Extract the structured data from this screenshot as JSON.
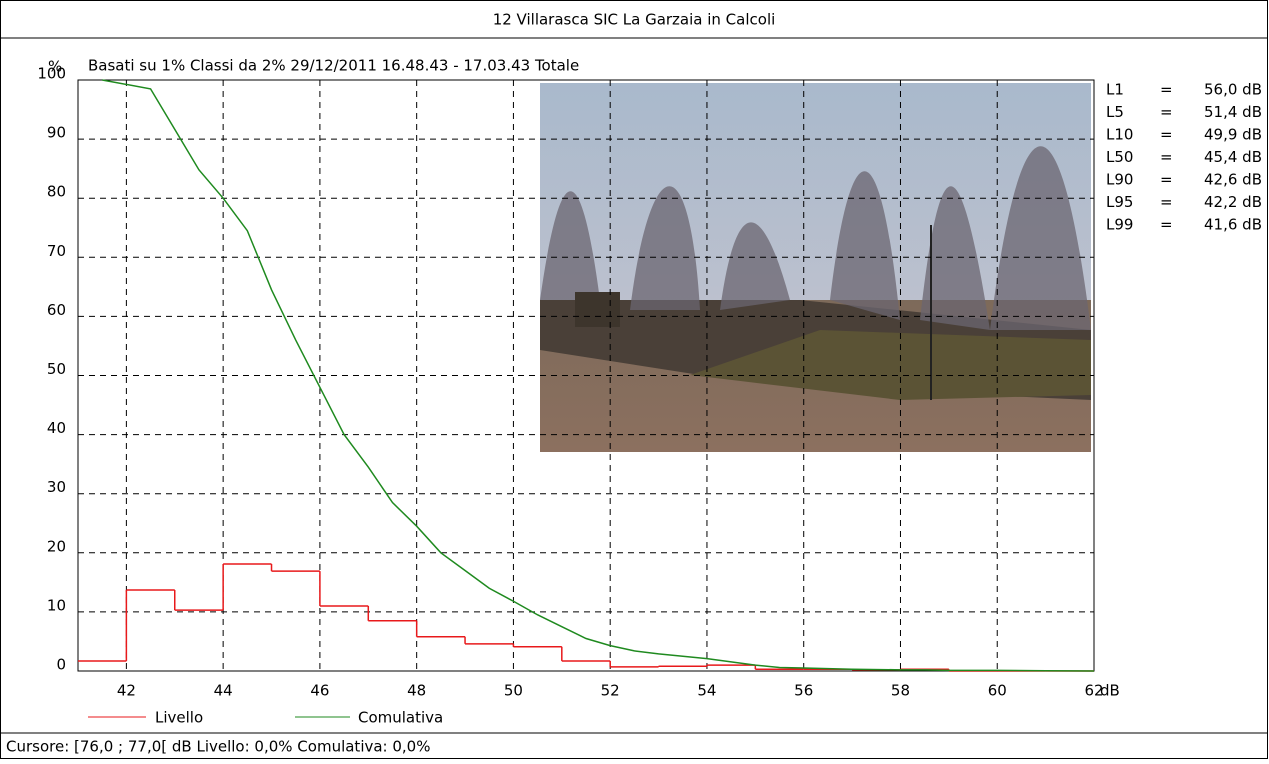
{
  "chart_data": {
    "type": "step-distribution",
    "title": "12 Villarasca SIC La Garzaia in Calcoli",
    "subtitle": "Basati su 1%   Classi da 2%  29/12/2011 16.48.43 - 17.03.43  Totale",
    "y_label": "%",
    "x_label": "dB",
    "xlim": [
      41,
      62
    ],
    "xticks": [
      42,
      44,
      46,
      48,
      50,
      52,
      54,
      56,
      58,
      60,
      62
    ],
    "ylim": [
      0,
      100
    ],
    "yticks": [
      0,
      10,
      20,
      30,
      40,
      50,
      60,
      70,
      80,
      90,
      100
    ],
    "grid": true,
    "series": [
      {
        "name": "Livello",
        "color": "#e8191b",
        "bins": [
          41,
          42,
          43,
          44,
          45,
          46,
          47,
          48,
          49,
          50,
          51,
          52,
          53,
          54,
          55,
          56,
          57,
          58,
          59,
          60,
          61,
          62
        ],
        "values": [
          1.7,
          13.7,
          10.3,
          18.1,
          16.9,
          11.0,
          8.5,
          5.8,
          4.6,
          4.1,
          1.7,
          0.7,
          0.8,
          1.0,
          0.3,
          0.3,
          0.2,
          0.3,
          0,
          0,
          0
        ]
      },
      {
        "name": "Comulativa",
        "color": "#1f8a1f",
        "x": [
          41.5,
          42.5,
          43.5,
          44,
          44.5,
          45,
          45.5,
          46,
          46.5,
          47,
          47.5,
          48,
          48.5,
          49,
          49.5,
          50,
          50.5,
          51,
          51.5,
          52,
          52.5,
          53,
          54,
          55,
          55.5,
          56,
          57,
          58,
          58.5,
          59,
          60,
          61,
          62
        ],
        "values": [
          100,
          98.5,
          84.8,
          80,
          74.5,
          64.5,
          56,
          48,
          40,
          34.5,
          28.5,
          24.5,
          20,
          17,
          14,
          11.8,
          9.5,
          7.5,
          5.5,
          4.3,
          3.4,
          2.9,
          2.1,
          1.0,
          0.6,
          0.5,
          0.3,
          0.2,
          0.2,
          0.1,
          0.1,
          0.05,
          0
        ]
      }
    ],
    "stats": [
      {
        "name": "L1",
        "sep": "=",
        "value": "56,0 dB"
      },
      {
        "name": "L5",
        "sep": "=",
        "value": "51,4 dB"
      },
      {
        "name": "L10",
        "sep": "=",
        "value": "49,9 dB"
      },
      {
        "name": "L50",
        "sep": "=",
        "value": "45,4 dB"
      },
      {
        "name": "L90",
        "sep": "=",
        "value": "42,6 dB"
      },
      {
        "name": "L95",
        "sep": "=",
        "value": "42,2 dB"
      },
      {
        "name": "L99",
        "sep": "=",
        "value": "41,6 dB"
      }
    ],
    "footer": "Cursore: [76,0 ; 77,0[ dB   Livello: 0,0%   Comulativa: 0,0%"
  }
}
